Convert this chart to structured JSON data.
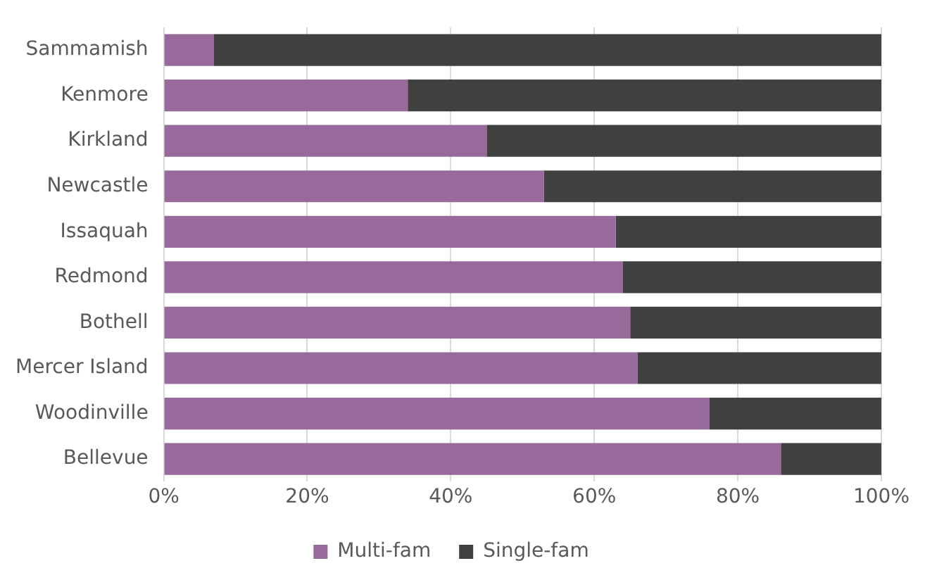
{
  "chart_data": {
    "type": "bar",
    "orientation": "horizontal",
    "stacked": true,
    "categories": [
      "Sammamish",
      "Kenmore",
      "Kirkland",
      "Newcastle",
      "Issaquah",
      "Redmond",
      "Bothell",
      "Mercer Island",
      "Woodinville",
      "Bellevue"
    ],
    "series": [
      {
        "name": "Multi-fam",
        "color": "#986a9b",
        "values": [
          7,
          34,
          45,
          53,
          63,
          64,
          65,
          66,
          76,
          86
        ]
      },
      {
        "name": "Single-fam",
        "color": "#404040",
        "values": [
          93,
          66,
          55,
          47,
          37,
          36,
          35,
          34,
          24,
          14
        ]
      }
    ],
    "xlim": [
      0,
      100
    ],
    "xticks": [
      {
        "value": 0,
        "label": "0%"
      },
      {
        "value": 20,
        "label": "20%"
      },
      {
        "value": 40,
        "label": "40%"
      },
      {
        "value": 60,
        "label": "60%"
      },
      {
        "value": 80,
        "label": "80%"
      },
      {
        "value": 100,
        "label": "100%"
      }
    ],
    "grid": "x",
    "legend": "bottom"
  }
}
